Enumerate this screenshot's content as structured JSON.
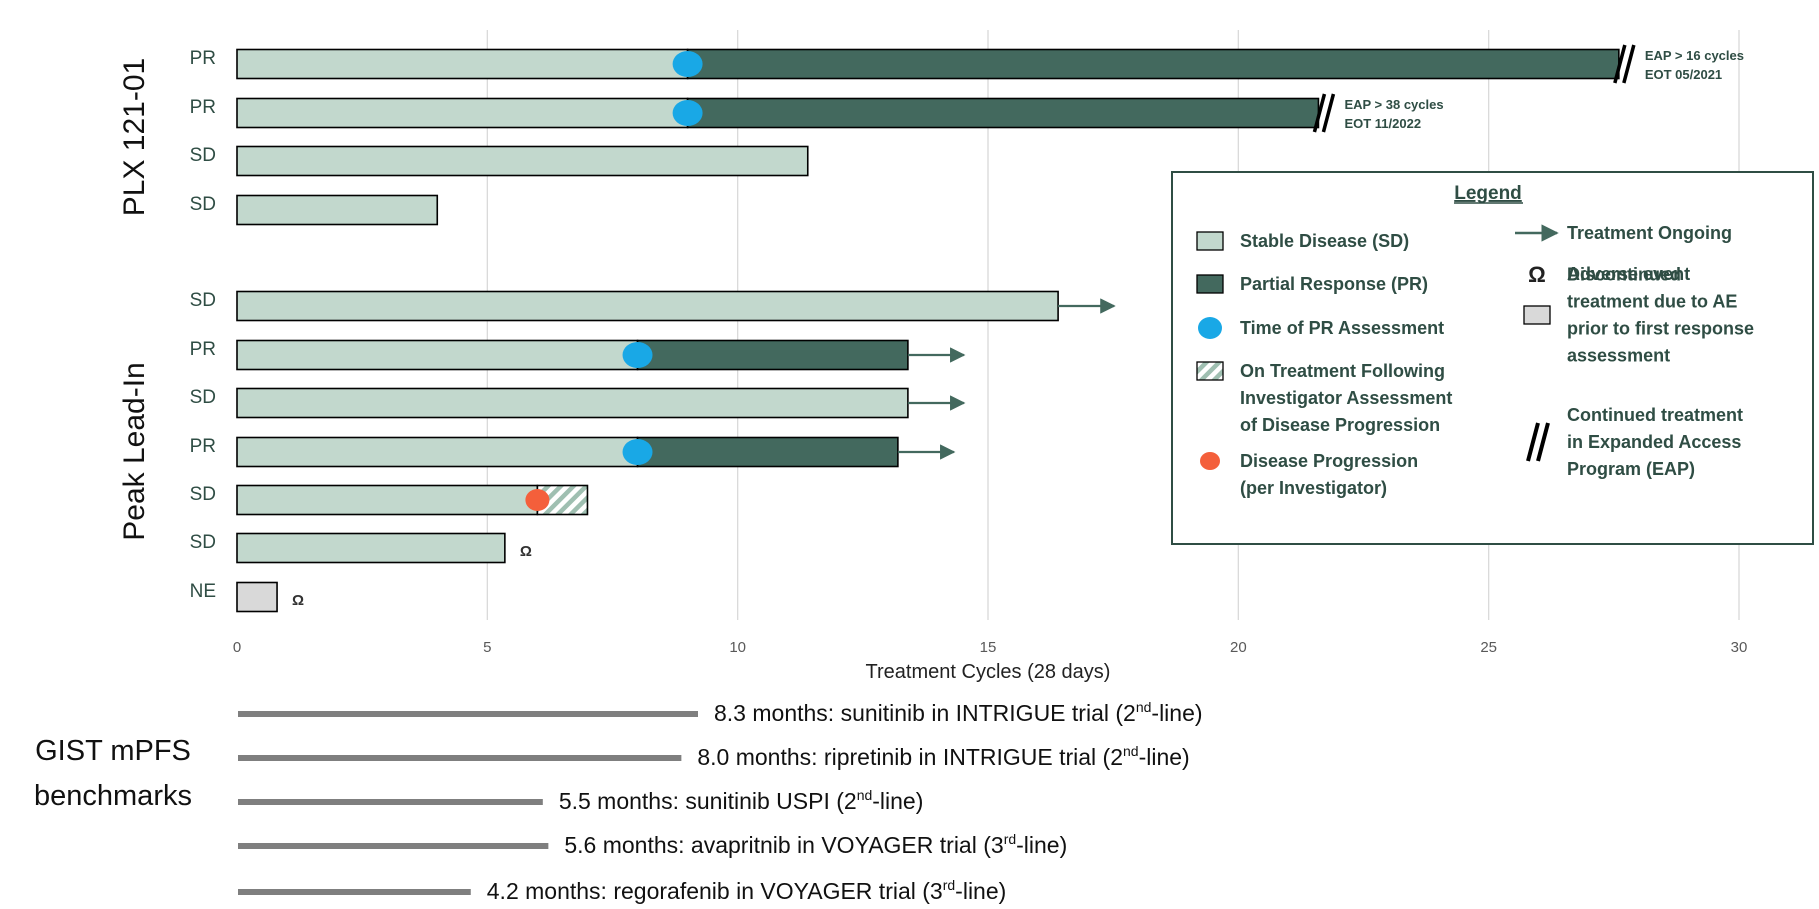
{
  "chart_data": {
    "type": "bar",
    "title": "",
    "xlabel": "Treatment Cycles (28 days)",
    "xlim": [
      0,
      30
    ],
    "xticks": [
      "0",
      "5",
      "10",
      "15",
      "20",
      "25",
      "30"
    ],
    "grid": true,
    "colors": {
      "sd": "#c2d8cd",
      "pr": "#43695e",
      "ae": "#d9d9d9",
      "assessment": "#19a8e6",
      "progression": "#f45f3b",
      "label": "#2f4d44"
    },
    "groups": [
      {
        "name": "PLX 121-01",
        "patients": [
          {
            "label": "PR",
            "sd_end": 9,
            "pr_end": 27.6,
            "pr_assessment": 9,
            "eap": true,
            "eap_note": [
              "EAP > 16 cycles",
              "EOT 05/2021"
            ]
          },
          {
            "label": "PR",
            "sd_end": 9,
            "pr_end": 21.6,
            "pr_assessment": 9,
            "eap": true,
            "eap_note": [
              "EAP > 38 cycles",
              "EOT 11/2022"
            ]
          },
          {
            "label": "SD",
            "sd_end": 11.4
          },
          {
            "label": "SD",
            "sd_end": 4.0
          }
        ]
      },
      {
        "name": "Peak Lead-In",
        "patients": [
          {
            "label": "SD",
            "sd_end": 16.4,
            "ongoing": true
          },
          {
            "label": "PR",
            "sd_end": 8.0,
            "pr_end": 13.4,
            "pr_assessment": 8.0,
            "ongoing": true
          },
          {
            "label": "SD",
            "sd_end": 13.4,
            "ongoing": true
          },
          {
            "label": "PR",
            "sd_end": 8.0,
            "pr_end": 13.2,
            "pr_assessment": 8.0,
            "ongoing": true
          },
          {
            "label": "SD",
            "sd_end": 6.0,
            "hatch_end": 7.0,
            "progression": 6.0
          },
          {
            "label": "SD",
            "sd_end": 5.35,
            "adverse_event": true
          },
          {
            "label": "NE",
            "ae_discontinued_end": 0.8,
            "adverse_event": true
          }
        ]
      }
    ],
    "legend": {
      "title": "Legend",
      "items": [
        {
          "key": "sd",
          "lines": [
            "Stable Disease (SD)"
          ]
        },
        {
          "key": "pr",
          "lines": [
            "Partial Response (PR)"
          ]
        },
        {
          "key": "assessment",
          "lines": [
            "Time of PR Assessment"
          ]
        },
        {
          "key": "hatch",
          "lines": [
            "On Treatment Following",
            "Investigator Assessment",
            "of Disease Progression"
          ]
        },
        {
          "key": "progression",
          "lines": [
            "Disease Progression",
            "(per Investigator)"
          ]
        },
        {
          "key": "ongoing",
          "lines": [
            "Treatment Ongoing"
          ]
        },
        {
          "key": "ae",
          "lines": [
            "Adverse event"
          ]
        },
        {
          "key": "discontinued",
          "lines": [
            "Discontinued",
            "treatment due to AE",
            "prior to first response",
            "assessment"
          ]
        },
        {
          "key": "eap",
          "lines": [
            "Continued treatment",
            "in Expanded Access",
            "Program (EAP)"
          ]
        }
      ]
    },
    "ae_symbol": "Ω",
    "benchmarks": {
      "title_lines": [
        "GIST mPFS",
        "benchmarks"
      ],
      "items": [
        {
          "months": 8.3,
          "label": "8.3 months: sunitinib in INTRIGUE trial (2",
          "sup": "nd",
          "tail": "-line)"
        },
        {
          "months": 8.0,
          "label": "8.0 months: ripretinib in INTRIGUE trial  (2",
          "sup": "nd",
          "tail": "-line)"
        },
        {
          "months": 5.5,
          "label": "5.5 months: sunitinib USPI (2",
          "sup": "nd",
          "tail": "-line)"
        },
        {
          "months": 5.6,
          "label": "5.6 months: avapritnib in VOYAGER trial (3",
          "sup": "rd",
          "tail": "-line)"
        },
        {
          "months": 4.2,
          "label": "4.2 months: regorafenib in VOYAGER trial (3",
          "sup": "rd",
          "tail": "-line)"
        }
      ]
    }
  }
}
